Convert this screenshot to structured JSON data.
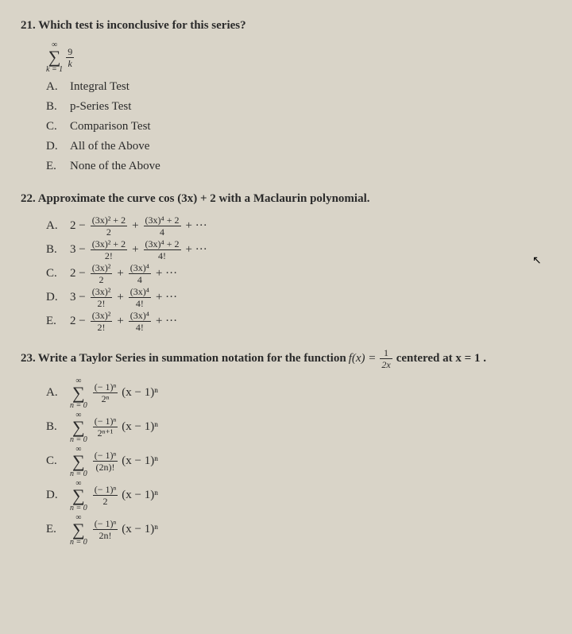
{
  "q21": {
    "number": "21.",
    "prompt": "Which test is inconclusive for this series?",
    "series_top": "∞",
    "series_bottom": "k = 1",
    "series_frac_num": "9",
    "series_frac_den": "k",
    "choices": {
      "A": "Integral Test",
      "B": "p-Series Test",
      "C": "Comparison Test",
      "D": "All of the Above",
      "E": "None of the Above"
    }
  },
  "q22": {
    "number": "22.",
    "prompt": "Approximate the curve cos (3x) + 2 with a Maclaurin polynomial.",
    "choices": {
      "A": {
        "lead": "2 −",
        "n1": "(3x)² + 2",
        "d1": "2",
        "mid": "+",
        "n2": "(3x)⁴ + 2",
        "d2": "4",
        "tail": "+  ···"
      },
      "B": {
        "lead": "3 −",
        "n1": "(3x)² + 2",
        "d1": "2!",
        "mid": "+",
        "n2": "(3x)⁴ + 2",
        "d2": "4!",
        "tail": "+  ···"
      },
      "C": {
        "lead": "2 −",
        "n1": "(3x)²",
        "d1": "2",
        "mid": "+",
        "n2": "(3x)⁴",
        "d2": "4",
        "tail": "+  ···"
      },
      "D": {
        "lead": "3 −",
        "n1": "(3x)²",
        "d1": "2!",
        "mid": "+",
        "n2": "(3x)⁴",
        "d2": "4!",
        "tail": "+  ···"
      },
      "E": {
        "lead": "2 −",
        "n1": "(3x)²",
        "d1": "2!",
        "mid": "+",
        "n2": "(3x)⁴",
        "d2": "4!",
        "tail": "+  ···"
      }
    }
  },
  "q23": {
    "number": "23.",
    "prompt_a": "Write a Taylor Series in summation notation for the function ",
    "prompt_f": "f(x) =",
    "prompt_frac_num": "1",
    "prompt_frac_den": "2x",
    "prompt_b": " centered at x = 1 .",
    "sum_top": "∞",
    "sum_bottom": "n = 0",
    "tail": "(x − 1)ⁿ",
    "choices": {
      "A": {
        "num": "(− 1)ⁿ",
        "den": "2ⁿ"
      },
      "B": {
        "num": "(− 1)ⁿ",
        "den": "2ⁿ⁺¹"
      },
      "C": {
        "num": "(− 1)ⁿ",
        "den": "(2n)!"
      },
      "D": {
        "num": "(− 1)ⁿ",
        "den": "2"
      },
      "E": {
        "num": "(− 1)ⁿ",
        "den": "2n!"
      }
    }
  }
}
